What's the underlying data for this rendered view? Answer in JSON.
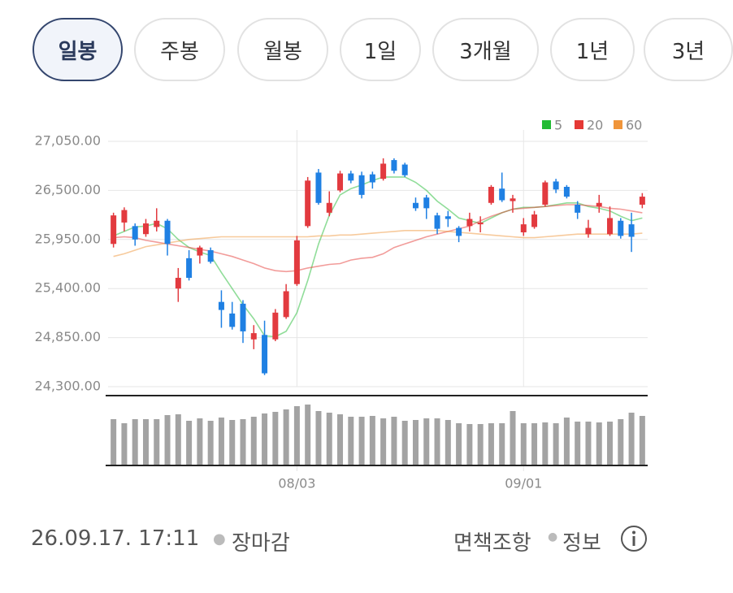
{
  "tabs": [
    "일봉",
    "주봉",
    "월봉",
    "1일",
    "3개월",
    "1년",
    "3년"
  ],
  "active_tab": 0,
  "chart_data": {
    "type": "candlestick",
    "categories": [
      null,
      null,
      null,
      null,
      null,
      null,
      null,
      null,
      null,
      null,
      null,
      null,
      null,
      null,
      null,
      null,
      null,
      "08/03",
      null,
      null,
      null,
      null,
      null,
      null,
      null,
      null,
      null,
      null,
      null,
      null,
      null,
      null,
      null,
      null,
      null,
      null,
      null,
      null,
      "09/01",
      null,
      null,
      null,
      null,
      null,
      null,
      null,
      null,
      null,
      null,
      null
    ],
    "open": [
      25900,
      26140,
      26100,
      26010,
      26090,
      26160,
      25400,
      25740,
      25770,
      25830,
      25250,
      25120,
      25230,
      24830,
      24880,
      24830,
      25080,
      25450,
      26100,
      26700,
      26250,
      26500,
      26690,
      26670,
      26680,
      26630,
      26840,
      26790,
      26360,
      26420,
      26220,
      26210,
      26080,
      26100,
      26120,
      26360,
      26520,
      26380,
      26030,
      26090,
      26340,
      26600,
      26540,
      26340,
      26010,
      26320,
      26010,
      26160,
      26120,
      26340
    ],
    "high": [
      26250,
      26310,
      26130,
      26180,
      26300,
      26180,
      25630,
      25830,
      25880,
      25860,
      25380,
      25250,
      25270,
      24990,
      25040,
      25170,
      25450,
      25990,
      26650,
      26740,
      26490,
      26720,
      26720,
      26710,
      26710,
      26860,
      26860,
      26810,
      26420,
      26450,
      26250,
      26270,
      26100,
      26250,
      26210,
      26560,
      26700,
      26450,
      26190,
      26270,
      26610,
      26630,
      26560,
      26380,
      26170,
      26450,
      26320,
      26190,
      26250,
      26470
    ],
    "low": [
      25860,
      26040,
      25880,
      25980,
      26040,
      25770,
      25250,
      25490,
      25680,
      25680,
      24960,
      24940,
      24790,
      24720,
      24430,
      24810,
      25060,
      25430,
      26080,
      26340,
      26210,
      26480,
      26580,
      26410,
      26520,
      26610,
      26690,
      26650,
      26270,
      26180,
      26010,
      26090,
      25920,
      26040,
      26030,
      26340,
      26370,
      26250,
      25990,
      26070,
      26320,
      26470,
      26410,
      26180,
      25970,
      26250,
      25990,
      25960,
      25810,
      26300
    ],
    "close": [
      26220,
      26280,
      25950,
      26130,
      26160,
      25900,
      25520,
      25520,
      25860,
      25700,
      25160,
      24970,
      24920,
      24900,
      24450,
      25130,
      25370,
      25940,
      26610,
      26360,
      26360,
      26690,
      26610,
      26450,
      26590,
      26800,
      26720,
      26670,
      26300,
      26300,
      26070,
      26180,
      25990,
      26180,
      26140,
      26540,
      26390,
      26410,
      26120,
      26230,
      26590,
      26510,
      26430,
      26250,
      26080,
      26360,
      26190,
      25990,
      25980,
      26430
    ],
    "up_color": "#e23a3f",
    "down_color": "#1f80e3",
    "ylim": [
      24300,
      27050
    ],
    "yticks": [
      {
        "value": 24300,
        "label": "24,300.00"
      },
      {
        "value": 24850,
        "label": "24,850.00"
      },
      {
        "value": 25400,
        "label": "25,400.00"
      },
      {
        "value": 25950,
        "label": "25,950.00"
      },
      {
        "value": 26500,
        "label": "26,500.00"
      },
      {
        "value": 27050,
        "label": "27,050.00"
      }
    ],
    "grid": true,
    "legend": "top-right",
    "moving_averages": [
      {
        "name": "5",
        "color": "#22bb33",
        "values": [
          25990,
          26040,
          26090,
          26100,
          26130,
          26070,
          25950,
          25860,
          25810,
          25770,
          25580,
          25400,
          25220,
          25060,
          24870,
          24860,
          24920,
          25130,
          25490,
          25900,
          26220,
          26450,
          26520,
          26560,
          26610,
          26650,
          26650,
          26650,
          26590,
          26500,
          26380,
          26290,
          26190,
          26160,
          26130,
          26190,
          26250,
          26290,
          26310,
          26310,
          26320,
          26340,
          26360,
          26360,
          26320,
          26300,
          26270,
          26210,
          26160,
          26190
        ]
      },
      {
        "name": "20",
        "color": "#e53935",
        "values": [
          25970,
          25980,
          25970,
          25940,
          25920,
          25900,
          25880,
          25860,
          25840,
          25820,
          25790,
          25760,
          25720,
          25680,
          25630,
          25600,
          25590,
          25600,
          25630,
          25650,
          25670,
          25680,
          25720,
          25740,
          25750,
          25790,
          25860,
          25900,
          25940,
          25980,
          26010,
          26040,
          26070,
          26100,
          26160,
          26210,
          26250,
          26290,
          26300,
          26310,
          26320,
          26330,
          26340,
          26340,
          26330,
          26320,
          26300,
          26290,
          26270,
          26250
        ]
      },
      {
        "name": "60",
        "color": "#f0953a",
        "values": [
          25760,
          25790,
          25830,
          25870,
          25890,
          25910,
          25930,
          25950,
          25960,
          25970,
          25980,
          25980,
          25980,
          25980,
          25980,
          25980,
          25980,
          25980,
          25980,
          25990,
          25990,
          26000,
          26000,
          26010,
          26020,
          26030,
          26040,
          26050,
          26050,
          26050,
          26050,
          26040,
          26030,
          26020,
          26010,
          26000,
          25990,
          25980,
          25970,
          25970,
          25980,
          25990,
          26000,
          26010,
          26010,
          26010,
          26010,
          26010,
          26010,
          26020
        ]
      }
    ],
    "volume": {
      "color": "#a3a3a3",
      "values": [
        57,
        52,
        57,
        57,
        57,
        62,
        63,
        55,
        58,
        55,
        59,
        56,
        57,
        60,
        64,
        66,
        69,
        73,
        75,
        67,
        65,
        63,
        60,
        60,
        61,
        58,
        60,
        55,
        56,
        58,
        58,
        56,
        52,
        51,
        51,
        52,
        52,
        67,
        52,
        52,
        53,
        52,
        59,
        54,
        54,
        53,
        54,
        57,
        65,
        61
      ]
    }
  },
  "footer": {
    "timestamp": "26.09.17. 17:11",
    "status": "장마감",
    "disclaimer": "면책조항",
    "info": "정보"
  }
}
